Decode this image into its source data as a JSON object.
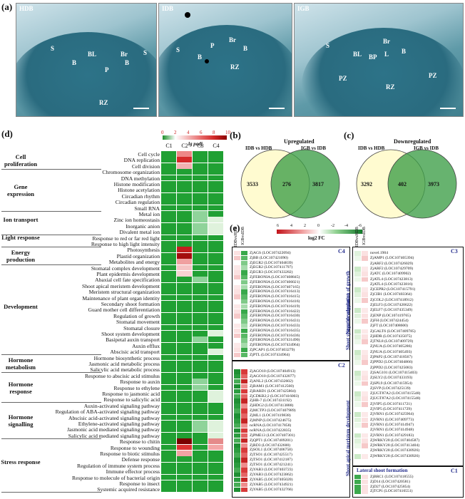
{
  "panel_a": {
    "label": "(a)",
    "images": [
      {
        "title": "HDB",
        "labels": [
          "S",
          "B",
          "B",
          "BL",
          "Br",
          "P",
          "S",
          "RZ"
        ]
      },
      {
        "title": "IDB",
        "labels": [
          "S",
          "B",
          "P",
          "Br",
          "B",
          "RZ"
        ]
      },
      {
        "title": "IGB",
        "labels": [
          "S",
          "Br",
          "BL",
          "BP",
          "L",
          "B",
          "PZ",
          "PZ",
          "RZ"
        ]
      }
    ]
  },
  "panel_d": {
    "label": "(d)",
    "scale_title": "lg padj",
    "scale_ticks": [
      "0",
      "2",
      "4",
      "6",
      "8",
      "10"
    ],
    "columns": [
      "C1",
      "C2",
      "C3",
      "C4"
    ],
    "categories": [
      {
        "name": "Cell proliferation"
      },
      {
        "name": "Gene expression"
      },
      {
        "name": "Ion transport"
      },
      {
        "name": "Light response"
      },
      {
        "name": "Energy production"
      },
      {
        "name": "Development"
      },
      {
        "name": "Hormone metabolism"
      },
      {
        "name": "Hormone response"
      },
      {
        "name": "Hormone signalling"
      },
      {
        "name": "Stress response"
      }
    ],
    "terms": [
      "Cell cycle",
      "DNA replication",
      "Cell division",
      "Chromosome organization",
      "DNA methylation",
      "Histone modification",
      "Histone acetylation",
      "Circadian rhythm",
      "Circadian regulation",
      "Small RNA",
      "Metal ion",
      "Zinc ion homeostasis",
      "Inorganic anion",
      "Divalent metal ion",
      "Response to red or far red light",
      "Response to high light intensity",
      "Photosynthesis",
      "Plastid organization",
      "Metabolites and energy",
      "Stomatal complex development",
      "Plant epidermis development",
      "Abaxial cell fate specification",
      "Shoot apical meristem development",
      "Meristem structural organization",
      "Maintenance of plant organ identity",
      "Secondary shoot formation",
      "Guard mother cell differentiation",
      "Regulation of growth",
      "Stomatal movement",
      "Stomatal closure",
      "Shoot system development",
      "Basipetal auxin transport",
      "Auxin efflux",
      "Abscisic acid transport",
      "Hormone biosynthetic process",
      "Jasmonic acid metabolic process",
      "Salicylic acid metabolic process",
      "Response to abscisic acid stimulus",
      "Response to auxin",
      "Response to ethylene",
      "Response to jasmonic acid",
      "Response to salicylic acid",
      "Auxin-activated signaling pathway",
      "Regulation of ABA-activated signaling pathway",
      "Abscisic acid-activated signaling pathway",
      "Ethylene-activated signaling pathway",
      "Jasmonic acid mediated signaling pathway",
      "Salicylic acid mediated signaling pathway",
      "Response to chitin",
      "Response to wounding",
      "Response to biotic stimulus",
      "Defense response",
      "Regulation of immune system process",
      "Immune effector process",
      "Response to molecule of bacterial origin",
      "Response to insect",
      "Systemic acquired resistance"
    ]
  },
  "panel_b": {
    "label": "(b)",
    "title": "Upregulated",
    "left_set": "IDB vs HDB",
    "right_set": "IGB vs IDB",
    "left_only": "3533",
    "overlap": "276",
    "right_only": "3817"
  },
  "panel_c": {
    "label": "(c)",
    "title": "Downregulated",
    "left_set": "IDB vs HDB",
    "right_set": "IGB vs IDB",
    "left_only": "3292",
    "overlap": "402",
    "right_only": "3973"
  },
  "panel_e": {
    "label": "(e)",
    "scale_title": "log2 FC",
    "scale_ticks": [
      "6",
      "4",
      "2",
      "0",
      "-2",
      "-4",
      "-6"
    ],
    "col_heads": [
      "IDBvsHDB",
      "IGBvsIDB"
    ],
    "c4_tag": "C4",
    "c2_tag": "C2",
    "c3_tag": "C3",
    "c1_tag": "C1",
    "side_label_1": "Negative regulation of growth",
    "side_label_2": "Shoot system development",
    "side_label_3": "Shoot apical meristem development",
    "lateral_label": "Lateral shoot formation",
    "c4_genes": [
      "ZjAGS (LOC107422094)",
      "ZjBB (LOC107421090)",
      "ZjEGR2 (LOC107404839)",
      "ZjEGR2 (LOC107411797)",
      "ZjEGR3 (LOC107433282)",
      "ZjFERONIA (LOC107408845)",
      "ZjFERONIA (LOC107406021)",
      "ZjFERONIA (LOC107407165)",
      "ZjFERONIA (LOC107416413)",
      "ZjFERONIA (LOC107416415)",
      "ZjFERONIA (LOC107416416)",
      "ZjFERONIA (LOC107416419)",
      "ZjFERONIA (LOC107416422)",
      "ZjFERONIA (LOC107416430)",
      "ZjFERONIA (LOC107416431)",
      "ZjFERONIA (LOC107416433)",
      "ZjFERONIA (LOC107416435)",
      "ZjFERONIA (LOC107416436)",
      "ZjFERONIA (LOC107431490)",
      "ZjFERONIA (LOC107434964)",
      "ZjPCAP1 (LOC107403279)",
      "ZjPTL (LOC107434964)"
    ],
    "c2_genes": [
      "ZjAGO10 (LOC107404913)",
      "ZjAGO10 (LOC107432077)",
      "ZjANL2 (LOC107432602)",
      "ZjBAM1 (LOC107412560)",
      "ZjBARD1 (LOC107425804)",
      "ZjCDKB2;2 (LOC107416003)",
      "ZjHB-7 (LOC107431192)",
      "ZjHDG2 (LOC107413888)",
      "ZjMCTP3 (LOC107407989)",
      "ZjML1 (LOC107419838)",
      "ZjMNP (LOC107424675)",
      "ncRNA (LOC107417858)",
      "ncRNA (LOC107422835)",
      "ZjPME13 (LOC107407301)",
      "ZjQPT1 (LOC107409201)",
      "ZjRD3 (LOC107432600)",
      "ZjSOL1 (LOC107406758)",
      "ZjTSO1 (LOC107425517)",
      "ZjTSO1 (LOC107412187)",
      "ZjTSO1 (LOC107421241)",
      "ZjYAB3 (LOC107403723)",
      "ZjYAB3 (LOC107423862)",
      "ZjYAB5 (LOC107405020)",
      "ZjYAB5 (LOC107434921)",
      "ZjYAB5 (LOC107432766)"
    ],
    "c3_genes": [
      "novel.1904",
      "ZjAMP1 (LOC107405394)",
      "ZjARF2 (LOC107426029)",
      "ZjARF2 (LOC107429709)",
      "ZjATC (LOC107409902)",
      "ZjATL4 (LOC107423813)",
      "ZjATL4 (LOC107423816)",
      "ZjCEPR2 (LOC107415791)",
      "ZjCIB1 (LOC107403364)",
      "ZjCOL2 (LOC107418912)",
      "ZjELF3 (LOC107420622)",
      "ZjELF7 (LOC107435349)",
      "ZjENP (LOC107419765)",
      "ZjFH (LOC107424454)",
      "ZjFT (LOC107408600)",
      "ZjGALT6 (LOC107409785)",
      "ZjHDR (LOC107435075)",
      "ZjTNL8 (LOC107409729)",
      "ZjNUA (LOC107405286)",
      "ZjNUA (LOC107405493)",
      "ZjPAP2 (LOC107418567)",
      "ZjPPD2 (LOC107404866)",
      "ZjPPD2 (LOC107425083)",
      "ZjSAG101 (LOC107415403)",
      "ZjSLY2 (LOC107433193)",
      "ZjSPL9 (LOC107415954)",
      "ZjSVP (LOC107425139)",
      "ZjUGT87A2 (LOC107415548)",
      "ZjUGT87A2 (LOC107415548)",
      "ZjVIP5 (LOC107411721)",
      "ZjVIP5 (LOC107411729)",
      "ZjVRN1 (LOC107425964)",
      "ZjVRN1 (LOC107409773)",
      "ZjVRN1 (LOC107414947)",
      "ZjVRN1 (LOC107414948)",
      "ZjVRN1 (LOC107429183)",
      "ZjWRKY28 (LOC107404587)",
      "ZjWRKY28 (LOC107413404)",
      "ZjWRKY28 (LOC107430926)",
      "ZjWRKY28 (LOC107430926)"
    ],
    "c1_genes": [
      "ZjBRC1 (LOC107418555)",
      "ZjD14 (LOC107420581)",
      "ZjD27 (LOC107425854)",
      "ZjTCP1 (LOC107416551)"
    ]
  }
}
